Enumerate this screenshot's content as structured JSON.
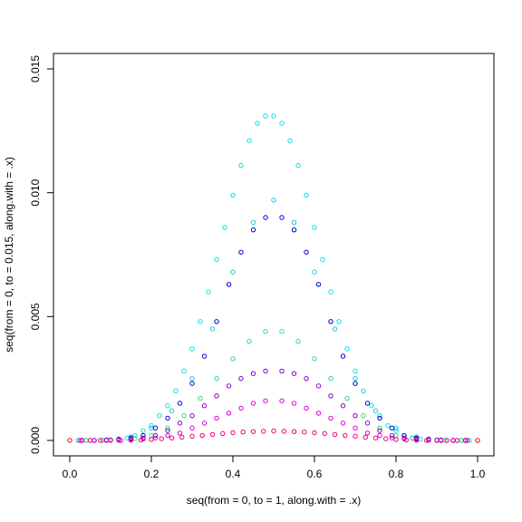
{
  "chart_data": {
    "type": "scatter",
    "title": "",
    "xlabel": "seq(from = 0, to = 1, along.with = .x)",
    "ylabel": "seq(from = 0, to = 0.015, along.with = .x)",
    "xlim": [
      0,
      1
    ],
    "ylim": [
      0,
      0.015
    ],
    "xticks": [
      "0.0",
      "0.2",
      "0.4",
      "0.6",
      "0.8",
      "1.0"
    ],
    "yticks": [
      "0.000",
      "0.005",
      "0.010",
      "0.015"
    ],
    "grid": false,
    "legend": "none",
    "series": [
      {
        "color": "#00e5e5",
        "x": [
          0.02,
          0.04,
          0.06,
          0.08,
          0.1,
          0.12,
          0.14,
          0.16,
          0.18,
          0.2,
          0.22,
          0.24,
          0.26,
          0.28,
          0.3,
          0.32,
          0.34,
          0.36,
          0.38,
          0.4,
          0.42,
          0.44,
          0.46,
          0.48,
          0.5,
          0.52,
          0.54,
          0.56,
          0.58,
          0.6,
          0.62,
          0.64,
          0.66,
          0.68,
          0.7,
          0.72,
          0.74,
          0.76,
          0.78,
          0.8,
          0.82,
          0.84,
          0.86,
          0.88,
          0.9,
          0.92,
          0.94,
          0.96,
          0.98
        ],
        "y": [
          0,
          0,
          0,
          1e-05,
          3e-05,
          5e-05,
          0.0001,
          0.0002,
          0.0004,
          0.0006,
          0.001,
          0.0014,
          0.002,
          0.0028,
          0.0037,
          0.0048,
          0.006,
          0.0073,
          0.0086,
          0.0099,
          0.0111,
          0.0121,
          0.0128,
          0.0131,
          0.0131,
          0.0128,
          0.0121,
          0.0111,
          0.0099,
          0.0086,
          0.0073,
          0.006,
          0.0048,
          0.0037,
          0.0028,
          0.002,
          0.0014,
          0.001,
          0.0006,
          0.0004,
          0.0002,
          0.0001,
          5e-05,
          3e-05,
          1e-05,
          0,
          0,
          0,
          0
        ]
      },
      {
        "color": "#1ec8d8",
        "x": [
          0.05,
          0.1,
          0.15,
          0.2,
          0.25,
          0.3,
          0.35,
          0.4,
          0.45,
          0.5,
          0.55,
          0.6,
          0.65,
          0.7,
          0.75,
          0.8,
          0.85,
          0.9,
          0.95
        ],
        "y": [
          0,
          3e-05,
          0.00015,
          0.0005,
          0.0012,
          0.0025,
          0.0045,
          0.0068,
          0.0088,
          0.0097,
          0.0088,
          0.0068,
          0.0045,
          0.0025,
          0.0012,
          0.0005,
          0.00015,
          3e-05,
          0
        ]
      },
      {
        "color": "#0000cc",
        "x": [
          0.03,
          0.06,
          0.09,
          0.12,
          0.15,
          0.18,
          0.21,
          0.24,
          0.27,
          0.3,
          0.33,
          0.36,
          0.39,
          0.42,
          0.45,
          0.48,
          0.52,
          0.55,
          0.58,
          0.61,
          0.64,
          0.67,
          0.7,
          0.73,
          0.76,
          0.79,
          0.82,
          0.85,
          0.88,
          0.91,
          0.94,
          0.97
        ],
        "y": [
          0,
          0,
          2e-05,
          5e-05,
          0.0001,
          0.0002,
          0.0005,
          0.0009,
          0.0015,
          0.0023,
          0.0034,
          0.0048,
          0.0063,
          0.0076,
          0.0085,
          0.009,
          0.009,
          0.0085,
          0.0076,
          0.0063,
          0.0048,
          0.0034,
          0.0023,
          0.0015,
          0.0009,
          0.0005,
          0.0002,
          0.0001,
          5e-05,
          2e-05,
          0,
          0
        ]
      },
      {
        "color": "#33dd77",
        "x": [
          0.04,
          0.08,
          0.12,
          0.16,
          0.2,
          0.24,
          0.28,
          0.32,
          0.36,
          0.4,
          0.44,
          0.48,
          0.52,
          0.56,
          0.6,
          0.64,
          0.68,
          0.72,
          0.76,
          0.8,
          0.84,
          0.88,
          0.92,
          0.96
        ],
        "y": [
          0,
          0,
          2e-05,
          8e-05,
          0.0002,
          0.0005,
          0.001,
          0.0017,
          0.0025,
          0.0033,
          0.004,
          0.0044,
          0.0044,
          0.004,
          0.0033,
          0.0025,
          0.0017,
          0.001,
          0.0005,
          0.0002,
          8e-05,
          2e-05,
          0,
          0
        ]
      },
      {
        "color": "#8800cc",
        "x": [
          0.03,
          0.06,
          0.09,
          0.12,
          0.15,
          0.18,
          0.21,
          0.24,
          0.27,
          0.3,
          0.33,
          0.36,
          0.39,
          0.42,
          0.45,
          0.48,
          0.52,
          0.55,
          0.58,
          0.61,
          0.64,
          0.67,
          0.7,
          0.73,
          0.76,
          0.79,
          0.82,
          0.85,
          0.88,
          0.91,
          0.94,
          0.97
        ],
        "y": [
          0,
          0,
          1e-05,
          3e-05,
          6e-05,
          0.0001,
          0.0002,
          0.0004,
          0.0007,
          0.001,
          0.0014,
          0.0018,
          0.0022,
          0.0025,
          0.0027,
          0.0028,
          0.0028,
          0.0027,
          0.0025,
          0.0022,
          0.0018,
          0.0014,
          0.001,
          0.0007,
          0.0004,
          0.0002,
          0.0001,
          6e-05,
          3e-05,
          1e-05,
          0,
          0
        ]
      },
      {
        "color": "#dd00dd",
        "x": [
          0.03,
          0.06,
          0.09,
          0.12,
          0.15,
          0.18,
          0.21,
          0.24,
          0.27,
          0.3,
          0.33,
          0.36,
          0.39,
          0.42,
          0.45,
          0.48,
          0.52,
          0.55,
          0.58,
          0.61,
          0.64,
          0.67,
          0.7,
          0.73,
          0.76,
          0.79,
          0.82,
          0.85,
          0.88,
          0.91,
          0.94,
          0.97
        ],
        "y": [
          0,
          0,
          0,
          1e-05,
          3e-05,
          6e-05,
          0.0001,
          0.0002,
          0.0003,
          0.0005,
          0.0007,
          0.0009,
          0.0011,
          0.0013,
          0.0015,
          0.0016,
          0.0016,
          0.0015,
          0.0013,
          0.0011,
          0.0009,
          0.0007,
          0.0005,
          0.0003,
          0.0002,
          0.0001,
          6e-05,
          3e-05,
          1e-05,
          0,
          0,
          0
        ]
      },
      {
        "color": "#ee0077",
        "x": [
          0.025,
          0.05,
          0.075,
          0.1,
          0.125,
          0.15,
          0.175,
          0.2,
          0.225,
          0.25,
          0.275,
          0.3,
          0.325,
          0.35,
          0.375,
          0.4,
          0.425,
          0.45,
          0.475,
          0.5,
          0.525,
          0.55,
          0.575,
          0.6,
          0.625,
          0.65,
          0.675,
          0.7,
          0.725,
          0.75,
          0.775,
          0.8,
          0.825,
          0.85,
          0.875,
          0.9,
          0.925,
          0.95,
          0.975
        ],
        "y": [
          0,
          0,
          0,
          0,
          0,
          1e-05,
          2e-05,
          4e-05,
          7e-05,
          0.0001,
          0.00013,
          0.00017,
          0.0002,
          0.00024,
          0.00028,
          0.00031,
          0.00034,
          0.00036,
          0.00037,
          0.00038,
          0.00037,
          0.00036,
          0.00034,
          0.00031,
          0.00028,
          0.00024,
          0.0002,
          0.00017,
          0.00013,
          0.0001,
          7e-05,
          4e-05,
          2e-05,
          1e-05,
          0,
          0,
          0,
          0,
          0
        ]
      },
      {
        "color": "#ff0000",
        "x": [
          0.0,
          1.0
        ],
        "y": [
          0,
          0
        ]
      }
    ]
  }
}
